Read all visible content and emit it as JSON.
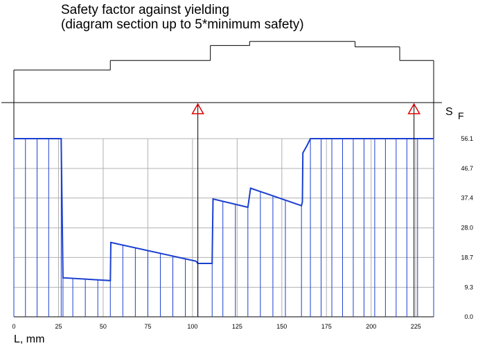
{
  "title": {
    "line1": "Safety factor against yielding",
    "line2": "(diagram section up to 5*minimum safety)"
  },
  "chart_data": {
    "type": "line",
    "title": "Safety factor against yielding (diagram section up to 5*minimum safety)",
    "xlabel": "L, mm",
    "ylabel_main": "S",
    "ylabel_sub": "F",
    "xlim": [
      0,
      235
    ],
    "ylim": [
      0,
      56.1
    ],
    "xticks": [
      0,
      25,
      50,
      75,
      100,
      125,
      150,
      175,
      200,
      225
    ],
    "xtick_labels": [
      "0",
      "25",
      "50",
      "75",
      "100",
      "125",
      "150",
      "175",
      "200",
      "225"
    ],
    "yticks": [
      0.0,
      9.3,
      18.7,
      28.0,
      37.4,
      46.7,
      56.1
    ],
    "ytick_labels": [
      "0.0",
      "9.3",
      "18.7",
      "28.0",
      "37.4",
      "46.7",
      "56.1"
    ],
    "grid": true,
    "series": [
      {
        "points": [
          [
            0,
            56.1
          ],
          [
            26.5,
            56.1
          ],
          [
            27.5,
            12.3
          ],
          [
            54,
            11.4
          ],
          [
            54.3,
            23.4
          ],
          [
            102,
            17.5
          ],
          [
            103,
            16.8
          ],
          [
            111,
            16.8
          ],
          [
            111.5,
            37.1
          ],
          [
            131,
            34.5
          ],
          [
            131.2,
            35.2
          ],
          [
            132.5,
            40.5
          ],
          [
            161,
            35.0
          ],
          [
            161.5,
            36.2
          ],
          [
            161.8,
            51.6
          ],
          [
            164,
            53.8
          ],
          [
            166,
            56.1
          ],
          [
            235,
            56.1
          ]
        ]
      }
    ],
    "stations_x": [
      0,
      6.5,
      13,
      19.5,
      26.5,
      27.5,
      33,
      40,
      47,
      54,
      61,
      68,
      75,
      82,
      89,
      96,
      103,
      111,
      117,
      124,
      131,
      138,
      145,
      152,
      161,
      166,
      172,
      178,
      184,
      190,
      196,
      202,
      208,
      214,
      220,
      226,
      235
    ],
    "markers_x": [
      103,
      224
    ],
    "shaft_steps": [
      {
        "x_start": 0,
        "x_end": 54,
        "diameter": 48
      },
      {
        "x_start": 54,
        "x_end": 110,
        "diameter": 62
      },
      {
        "x_start": 110,
        "x_end": 132,
        "diameter": 84
      },
      {
        "x_start": 132,
        "x_end": 191,
        "diameter": 90
      },
      {
        "x_start": 191,
        "x_end": 216,
        "diameter": 82
      },
      {
        "x_start": 216,
        "x_end": 235,
        "diameter": 62
      }
    ]
  }
}
